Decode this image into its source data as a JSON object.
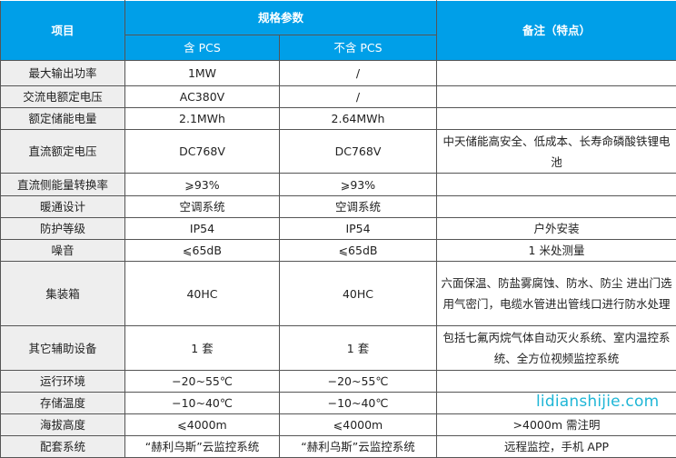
{
  "header": {
    "item": "项目",
    "spec": "规格参数",
    "with_pcs": "含 PCS",
    "without_pcs": "不含 PCS",
    "notes": "备注（特点）"
  },
  "rows": [
    {
      "item": "最大输出功率",
      "with_pcs": "1MW",
      "without_pcs": "/",
      "notes": ""
    },
    {
      "item": "交流电额定电压",
      "with_pcs": "AC380V",
      "without_pcs": "/",
      "notes": ""
    },
    {
      "item": "额定储能电量",
      "with_pcs": "2.1MWh",
      "without_pcs": "2.64MWh",
      "notes": ""
    },
    {
      "item": "直流额定电压",
      "with_pcs": "DC768V",
      "without_pcs": "DC768V",
      "notes": "中天储能高安全、低成本、长寿命磷酸铁锂电池"
    },
    {
      "item": "直流侧能量转换率",
      "with_pcs": "⩾93%",
      "without_pcs": "⩾93%",
      "notes": ""
    },
    {
      "item": "暖通设计",
      "with_pcs": "空调系统",
      "without_pcs": "空调系统",
      "notes": ""
    },
    {
      "item": "防护等级",
      "with_pcs": "IP54",
      "without_pcs": "IP54",
      "notes": "户外安装"
    },
    {
      "item": "噪音",
      "with_pcs": "⩽65dB",
      "without_pcs": "⩽65dB",
      "notes": "1 米处测量"
    },
    {
      "item": "集装箱",
      "with_pcs": "40HC",
      "without_pcs": "40HC",
      "notes": "六面保温、防盐雾腐蚀、防水、防尘 进出门选用气密门，电缆水管进出管线口进行防水处理"
    },
    {
      "item": "其它辅助设备",
      "with_pcs": "1 套",
      "without_pcs": "1 套",
      "notes": "包括七氟丙烷气体自动灭火系统、室内温控系统、全方位视频监控系统"
    },
    {
      "item": "运行环境",
      "with_pcs": "−20~55℃",
      "without_pcs": "−20~55℃",
      "notes": ""
    },
    {
      "item": "存储温度",
      "with_pcs": "−10~40℃",
      "without_pcs": "−10~40℃",
      "notes": ""
    },
    {
      "item": "海拔高度",
      "with_pcs": "⩽4000m",
      "without_pcs": "⩽4000m",
      "notes": ">4000m 需注明"
    },
    {
      "item": "配套系统",
      "with_pcs": "“赫利乌斯”云监控系统",
      "without_pcs": "“赫利乌斯”云监控系统",
      "notes": "远程监控，手机 APP"
    }
  ],
  "watermark": "lidianshijie.com",
  "colors": {
    "header_bg": "#009fe8",
    "label_bg": "#eeeeee",
    "watermark": "#1fb6d6"
  }
}
